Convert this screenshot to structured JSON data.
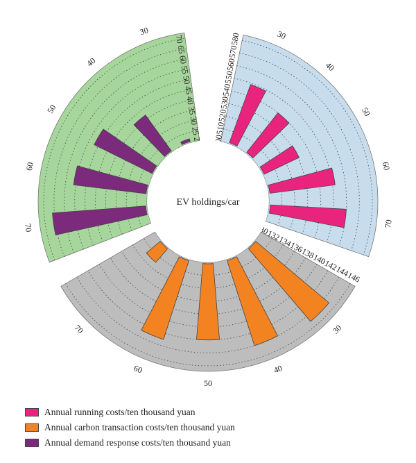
{
  "chart_data": {
    "type": "radial-bar",
    "center_label": "EV holdings/car",
    "categories": [
      30,
      40,
      50,
      60,
      70
    ],
    "series": [
      {
        "name": "Annual running costs/ten thousand yuan",
        "color": "#e8247e",
        "sector_background": "#c7dcec",
        "radial_ticks": [
          "500",
          "510",
          "520",
          "530",
          "540",
          "550",
          "560",
          "570",
          "580"
        ],
        "range": [
          500,
          580
        ],
        "values": [
          549,
          540,
          531,
          552,
          560
        ]
      },
      {
        "name": "Annual carbon transaction costs/ten thousand yuan",
        "color": "#f38220",
        "sector_background": "#bdbdbd",
        "radial_ticks": [
          "130",
          "132",
          "134",
          "136",
          "138",
          "140",
          "142",
          "144",
          "146"
        ],
        "range": [
          130,
          146
        ],
        "values": [
          133,
          143,
          142,
          144,
          145
        ]
      },
      {
        "name": "Annual demand response costs/ten thousand yuan",
        "color": "#7b2a7c",
        "sector_background": "#a6d69b",
        "radial_ticks": [
          "20",
          "25",
          "30",
          "35",
          "40",
          "45",
          "50",
          "55",
          "60",
          "65",
          "70"
        ],
        "range": [
          20,
          70
        ],
        "values": [
          22,
          42,
          52,
          56,
          66
        ]
      }
    ],
    "grid": true,
    "legend_position": "bottom-left"
  },
  "legend": [
    {
      "label": "Annual running costs/ten thousand yuan",
      "color": "#e8247e"
    },
    {
      "label": "Annual carbon transaction costs/ten thousand yuan",
      "color": "#f38220"
    },
    {
      "label": "Annual demand response costs/ten thousand yuan",
      "color": "#7b2a7c"
    }
  ]
}
